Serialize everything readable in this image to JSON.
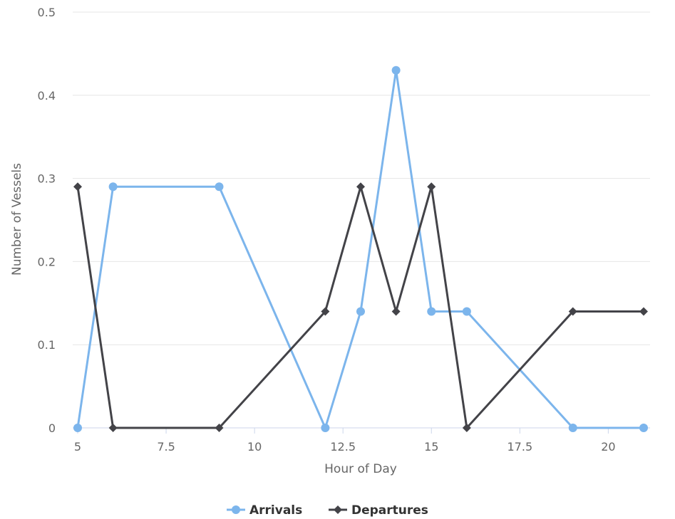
{
  "chart_data": {
    "type": "line",
    "xlabel": "Hour of Day",
    "ylabel": "Number of Vessels",
    "xlim": [
      5,
      21
    ],
    "ylim": [
      0,
      0.5
    ],
    "x_ticks": [
      "5",
      "7.5",
      "10",
      "12.5",
      "15",
      "17.5",
      "20"
    ],
    "y_ticks": [
      "0",
      "0.1",
      "0.2",
      "0.3",
      "0.4",
      "0.5"
    ],
    "grid": true,
    "legend_position": "bottom-center",
    "series": [
      {
        "name": "Arrivals",
        "color": "#7cb5ec",
        "marker": "circle",
        "x": [
          5,
          6,
          9,
          12,
          13,
          14,
          15,
          16,
          19,
          21
        ],
        "y": [
          0,
          0.29,
          0.29,
          0,
          0.14,
          0.43,
          0.14,
          0.14,
          0,
          0
        ]
      },
      {
        "name": "Departures",
        "color": "#434348",
        "marker": "diamond",
        "x": [
          5,
          6,
          9,
          12,
          13,
          14,
          15,
          16,
          19,
          21
        ],
        "y": [
          0.29,
          0,
          0,
          0.14,
          0.29,
          0.14,
          0.29,
          0,
          0.14,
          0.14
        ]
      }
    ]
  }
}
